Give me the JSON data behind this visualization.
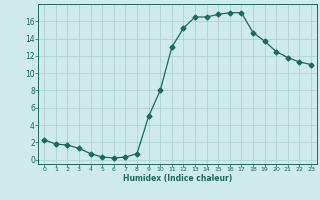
{
  "x": [
    0,
    1,
    2,
    3,
    4,
    5,
    6,
    7,
    8,
    9,
    10,
    11,
    12,
    13,
    14,
    15,
    16,
    17,
    18,
    19,
    20,
    21,
    22,
    23
  ],
  "y": [
    2.3,
    1.8,
    1.7,
    1.3,
    0.7,
    0.3,
    0.2,
    0.3,
    0.7,
    5.0,
    8.0,
    13.0,
    15.2,
    16.5,
    16.5,
    16.8,
    17.0,
    17.0,
    14.7,
    13.7,
    12.5,
    11.8,
    11.3,
    11.0
  ],
  "line_color": "#1a6b5a",
  "marker": "D",
  "marker_size": 2.5,
  "xlabel": "Humidex (Indice chaleur)",
  "xlim": [
    -0.5,
    23.5
  ],
  "ylim": [
    -0.5,
    18.0
  ],
  "yticks": [
    0,
    2,
    4,
    6,
    8,
    10,
    12,
    14,
    16
  ],
  "xticks": [
    0,
    1,
    2,
    3,
    4,
    5,
    6,
    7,
    8,
    9,
    10,
    11,
    12,
    13,
    14,
    15,
    16,
    17,
    18,
    19,
    20,
    21,
    22,
    23
  ],
  "bg_color": "#ceeaea",
  "grid_color": "#aacece",
  "tick_color": "#1a6b5a",
  "label_color": "#1a6b5a",
  "spine_color": "#1a6b5a"
}
